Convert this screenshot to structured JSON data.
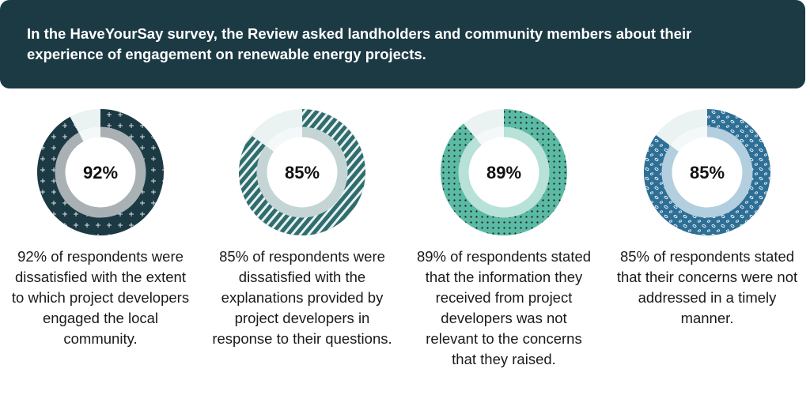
{
  "header": {
    "text": "In the HaveYourSay survey, the Review asked landholders and community members about their experience of engagement on renewable energy projects."
  },
  "chart_data": [
    {
      "type": "pie",
      "value": 92,
      "label": "92%",
      "caption": "92% of respondents were dissatisfied with the extent to which project developers engaged the local community.",
      "color": "#1c3a44",
      "inner_color": "#a9b1b4",
      "pattern": "plus"
    },
    {
      "type": "pie",
      "value": 85,
      "label": "85%",
      "caption": "85% of respondents were dissatisfied with the explanations provided by project developers in response to their questions.",
      "color": "#2f6d6e",
      "inner_color": "#c5d4d4",
      "pattern": "stripes"
    },
    {
      "type": "pie",
      "value": 89,
      "label": "89%",
      "caption": "89% of respondents stated that the information they received from project developers was not relevant to the concerns that they raised.",
      "color": "#5bbaa4",
      "inner_color": "#b8e1d7",
      "pattern": "dots"
    },
    {
      "type": "pie",
      "value": 85,
      "label": "85%",
      "caption": "85% of respondents stated that their concerns were not addressed in a timely manner.",
      "color": "#2e6f96",
      "inner_color": "#b3cede",
      "pattern": "ovals"
    }
  ]
}
